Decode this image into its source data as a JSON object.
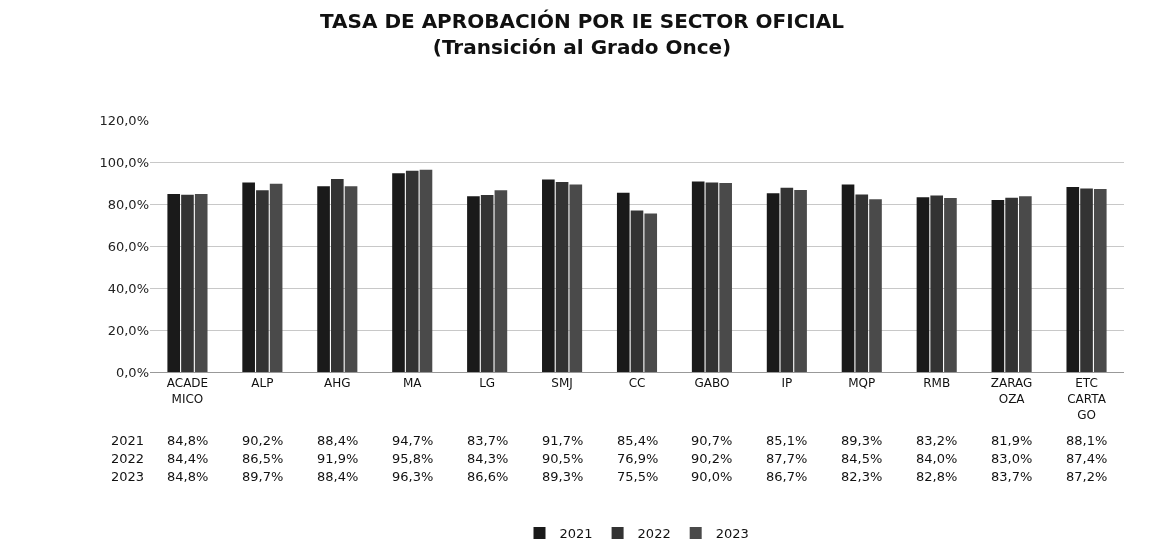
{
  "chart_data": {
    "type": "bar",
    "title": "TASA DE APROBACIÓN POR IE SECTOR OFICIAL\n(Transición al Grado Once)",
    "categories": [
      "ACADE\nMICO",
      "ALP",
      "AHG",
      "MA",
      "LG",
      "SMJ",
      "CC",
      "GABO",
      "IP",
      "MQP",
      "RMB",
      "ZARAG\nOZA",
      "ETC\nCARTA\nGO"
    ],
    "series": [
      {
        "name": "2021",
        "color": "#1a1a1a",
        "values": [
          84.8,
          90.2,
          88.4,
          94.7,
          83.7,
          91.7,
          85.4,
          90.7,
          85.1,
          89.3,
          83.2,
          81.9,
          88.1
        ],
        "value_labels": [
          "84,8%",
          "90,2%",
          "88,4%",
          "94,7%",
          "83,7%",
          "91,7%",
          "85,4%",
          "90,7%",
          "85,1%",
          "89,3%",
          "83,2%",
          "81,9%",
          "88,1%"
        ]
      },
      {
        "name": "2022",
        "color": "#333333",
        "values": [
          84.4,
          86.5,
          91.9,
          95.8,
          84.3,
          90.5,
          76.9,
          90.2,
          87.7,
          84.5,
          84.0,
          83.0,
          87.4
        ],
        "value_labels": [
          "84,4%",
          "86,5%",
          "91,9%",
          "95,8%",
          "84,3%",
          "90,5%",
          "76,9%",
          "90,2%",
          "87,7%",
          "84,5%",
          "84,0%",
          "83,0%",
          "87,4%"
        ]
      },
      {
        "name": "2023",
        "color": "#4a4a4a",
        "values": [
          84.8,
          89.7,
          88.4,
          96.3,
          86.6,
          89.3,
          75.5,
          90.0,
          86.7,
          82.3,
          82.8,
          83.7,
          87.2
        ],
        "value_labels": [
          "84,8%",
          "89,7%",
          "88,4%",
          "96,3%",
          "86,6%",
          "89,3%",
          "75,5%",
          "90,0%",
          "86,7%",
          "82,3%",
          "82,8%",
          "83,7%",
          "87,2%"
        ]
      }
    ],
    "ylim": [
      0,
      120
    ],
    "yticks": [
      {
        "value": 0,
        "label": "0,0%"
      },
      {
        "value": 20,
        "label": "20,0%"
      },
      {
        "value": 40,
        "label": "40,0%"
      },
      {
        "value": 60,
        "label": "60,0%"
      },
      {
        "value": 80,
        "label": "80,0%"
      },
      {
        "value": 100,
        "label": "100,0%"
      },
      {
        "value": 120,
        "label": "120,0%"
      }
    ],
    "grid": "y",
    "legend": "bottom"
  }
}
